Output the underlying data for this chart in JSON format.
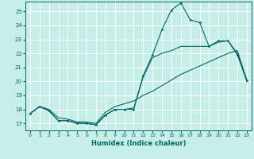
{
  "title": "",
  "xlabel": "Humidex (Indice chaleur)",
  "ylabel": "",
  "background_color": "#c8eee8",
  "grid_color": "#ffffff",
  "line_color": "#006666",
  "xlim": [
    -0.5,
    23.5
  ],
  "ylim": [
    16.5,
    25.7
  ],
  "xticks": [
    0,
    1,
    2,
    3,
    4,
    5,
    6,
    7,
    8,
    9,
    10,
    11,
    12,
    13,
    14,
    15,
    16,
    17,
    18,
    19,
    20,
    21,
    22,
    23
  ],
  "yticks": [
    17,
    18,
    19,
    20,
    21,
    22,
    23,
    24,
    25
  ],
  "line1_x": [
    0,
    1,
    2,
    3,
    4,
    5,
    6,
    7,
    8,
    9,
    10,
    11,
    12,
    13,
    14,
    15,
    16,
    17,
    18,
    19,
    20,
    21,
    22,
    23
  ],
  "line1_y": [
    17.7,
    18.2,
    17.9,
    17.2,
    17.2,
    17.0,
    17.0,
    16.9,
    17.6,
    18.0,
    18.0,
    18.0,
    20.4,
    21.9,
    23.7,
    25.1,
    25.6,
    24.4,
    24.2,
    22.5,
    22.9,
    22.9,
    21.9,
    20.1
  ],
  "line2_x": [
    0,
    1,
    2,
    3,
    4,
    5,
    6,
    7,
    8,
    9,
    10,
    11,
    12,
    13,
    14,
    15,
    16,
    17,
    18,
    19,
    20,
    21,
    22,
    23
  ],
  "line2_y": [
    17.7,
    18.2,
    17.9,
    17.2,
    17.2,
    17.0,
    17.0,
    16.9,
    17.6,
    18.0,
    18.0,
    18.1,
    20.3,
    21.7,
    22.0,
    22.2,
    22.5,
    22.5,
    22.5,
    22.5,
    22.8,
    22.9,
    22.0,
    20.0
  ],
  "line3_x": [
    0,
    1,
    2,
    3,
    4,
    5,
    6,
    7,
    8,
    9,
    10,
    11,
    12,
    13,
    14,
    15,
    16,
    17,
    18,
    19,
    20,
    21,
    22,
    23
  ],
  "line3_y": [
    17.7,
    18.2,
    18.0,
    17.4,
    17.3,
    17.1,
    17.1,
    17.0,
    17.8,
    18.2,
    18.4,
    18.6,
    19.0,
    19.3,
    19.7,
    20.1,
    20.5,
    20.8,
    21.1,
    21.4,
    21.7,
    22.0,
    22.2,
    20.1
  ],
  "marker_x": [
    0,
    1,
    2,
    3,
    4,
    5,
    6,
    7,
    8,
    9,
    10,
    11,
    12,
    13,
    14,
    15,
    16,
    17,
    18,
    19,
    20,
    21,
    22,
    23
  ],
  "marker_y": [
    17.7,
    18.2,
    17.9,
    17.2,
    17.2,
    17.0,
    17.0,
    16.9,
    17.6,
    18.0,
    18.0,
    18.0,
    20.4,
    21.9,
    23.7,
    25.1,
    25.6,
    24.4,
    24.2,
    22.5,
    22.9,
    22.9,
    21.9,
    20.1
  ]
}
